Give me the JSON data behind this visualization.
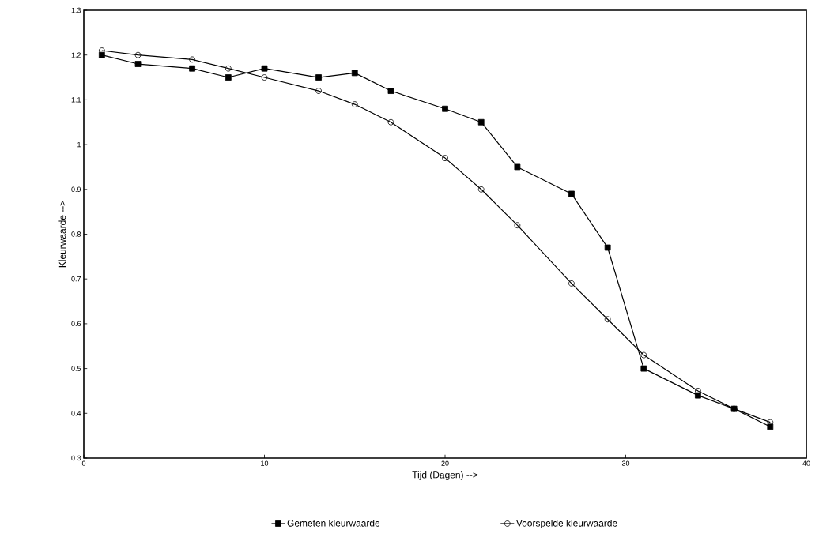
{
  "chart_data": {
    "type": "line",
    "xlabel": "Tijd (Dagen) -->",
    "ylabel": "Kleurwaarde -->",
    "xlim": [
      0,
      40
    ],
    "xticks": [
      0,
      10,
      20,
      30,
      40
    ],
    "ylim": [
      0.3,
      1.3
    ],
    "yticks": [
      0.3,
      0.4,
      0.5,
      0.6,
      0.7,
      0.8,
      0.9,
      1,
      1.1,
      1.2,
      1.3
    ],
    "grid": false,
    "legend": "bottom",
    "line_style": "solid",
    "series": [
      {
        "name": "Gemeten kleurwaarde",
        "color": "#000000",
        "marker": "square",
        "x": [
          1,
          3,
          6,
          8,
          10,
          13,
          15,
          17,
          20,
          22,
          24,
          27,
          29,
          31,
          34,
          36,
          38
        ],
        "values": [
          1.2,
          1.18,
          1.17,
          1.15,
          1.17,
          1.15,
          1.16,
          1.12,
          1.08,
          1.05,
          0.95,
          0.89,
          0.77,
          0.5,
          0.44,
          0.41,
          0.37
        ]
      },
      {
        "name": "Voorspelde kleurwaarde",
        "color": "#000000",
        "marker": "circle",
        "x": [
          1,
          3,
          6,
          8,
          10,
          13,
          15,
          17,
          20,
          22,
          24,
          27,
          29,
          31,
          34,
          36,
          38
        ],
        "values": [
          1.21,
          1.2,
          1.19,
          1.17,
          1.15,
          1.12,
          1.09,
          1.05,
          0.97,
          0.9,
          0.82,
          0.69,
          0.61,
          0.53,
          0.45,
          0.41,
          0.38
        ]
      }
    ]
  }
}
